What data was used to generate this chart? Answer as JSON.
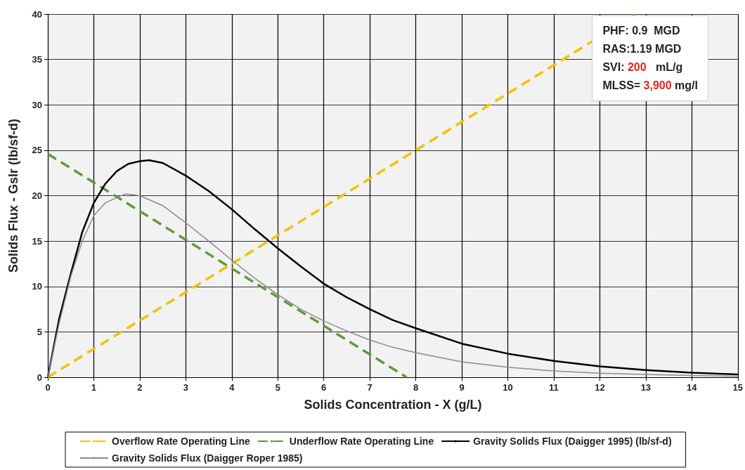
{
  "chart_data": {
    "type": "line",
    "xlabel": "Solids Concentration - X (g/L)",
    "ylabel": "Solids Flux - Gslr (lb/sf-d)",
    "xlim": [
      0,
      15
    ],
    "xticks": [
      0,
      1,
      2,
      3,
      4,
      5,
      6,
      7,
      8,
      9,
      10,
      11,
      12,
      13,
      14,
      15
    ],
    "ylim": [
      0,
      40
    ],
    "yticks": [
      0,
      5,
      10,
      15,
      20,
      25,
      30,
      35,
      40
    ],
    "grid": true,
    "legend": "bottom",
    "marker": "none",
    "annotations": [
      "PHF: 0.9  MGD",
      "RAS:1.19 MGD",
      "SVI: 200   mL/g",
      "MLSS= 3,900 mg/l"
    ],
    "series": [
      {
        "name": "Overflow Rate Operating Line",
        "color": "#f2c200",
        "line_style": "dashed",
        "x": [
          0,
          12.8
        ],
        "values": [
          0,
          40
        ]
      },
      {
        "name": "Underflow Rate Operating Line",
        "color": "#5f9a3c",
        "line_style": "dashed",
        "x": [
          0,
          7.8
        ],
        "values": [
          24.6,
          0
        ]
      },
      {
        "name": "Gravity Solids Flux (Daigger 1995) (lb/sf-d)",
        "color": "#000000",
        "line_style": "solid",
        "x": [
          0,
          0.25,
          0.5,
          0.75,
          1,
          1.25,
          1.5,
          1.75,
          2,
          2.2,
          2.5,
          3,
          3.5,
          4,
          4.5,
          5,
          5.5,
          6,
          6.5,
          7,
          7.5,
          8,
          9,
          10,
          11,
          12,
          13,
          14,
          15
        ],
        "values": [
          0,
          6.5,
          11.4,
          16,
          19.2,
          21.3,
          22.7,
          23.5,
          23.8,
          23.9,
          23.6,
          22.2,
          20.5,
          18.5,
          16.3,
          14.2,
          12.2,
          10.3,
          8.8,
          7.5,
          6.3,
          5.4,
          3.7,
          2.6,
          1.8,
          1.2,
          0.8,
          0.5,
          0.3
        ]
      },
      {
        "name": "Gravity Solids Flux (Daigger Roper 1985)",
        "color": "#8c8c8c",
        "line_style": "solid",
        "x": [
          0,
          0.25,
          0.5,
          0.75,
          1,
          1.25,
          1.5,
          1.7,
          2,
          2.5,
          3,
          3.5,
          4,
          4.5,
          5,
          5.5,
          6,
          6.5,
          7,
          7.5,
          8,
          9,
          10,
          11,
          12,
          13,
          14,
          15
        ],
        "values": [
          0,
          6,
          11.1,
          15,
          17.8,
          19.2,
          19.8,
          20.2,
          20,
          18.9,
          17,
          15,
          12.9,
          10.9,
          9.1,
          7.5,
          6.2,
          5.1,
          4.1,
          3.3,
          2.7,
          1.7,
          1.1,
          0.7,
          0.45,
          0.3,
          0.2,
          0.1
        ]
      }
    ]
  }
}
